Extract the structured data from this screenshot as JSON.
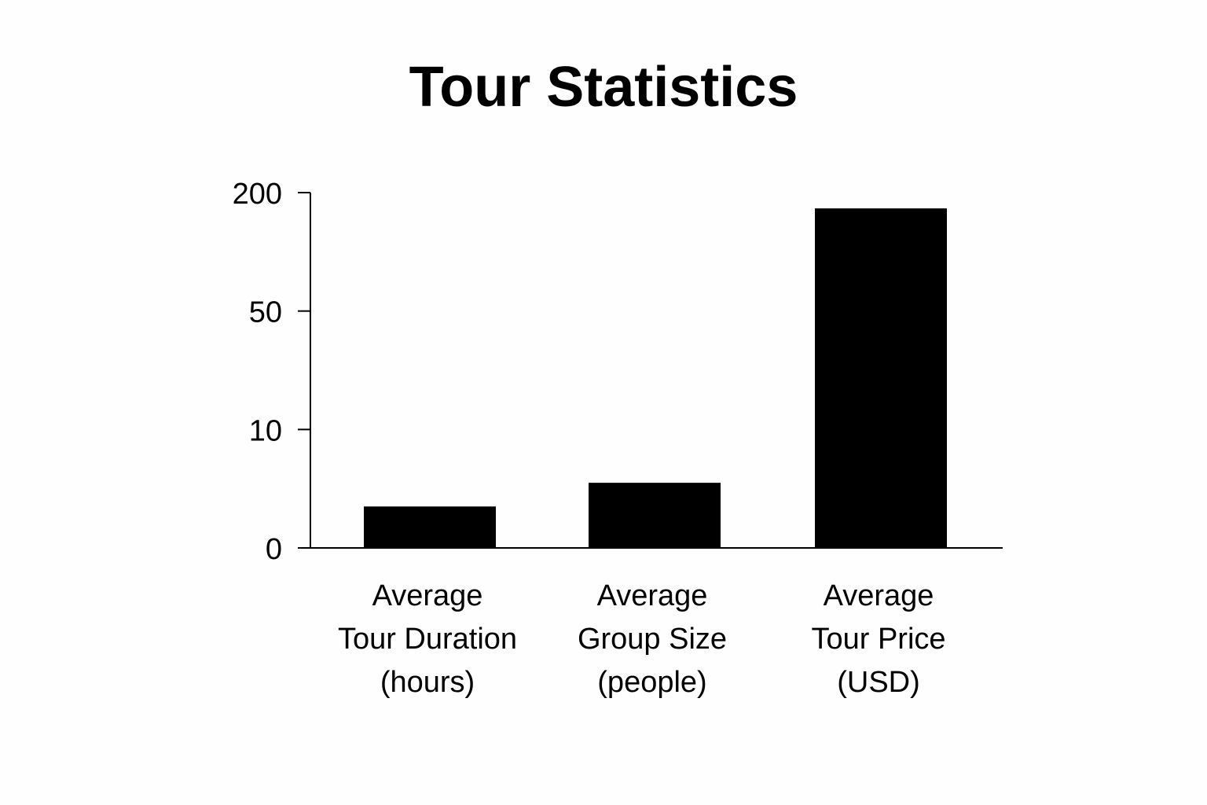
{
  "chart_data": {
    "type": "bar",
    "title": "Tour Statistics",
    "xlabel": "",
    "ylabel": "",
    "categories": [
      [
        "Average",
        "Tour Duration",
        "(hours)"
      ],
      [
        "Average",
        "Group Size",
        "(people)"
      ],
      [
        "Average",
        "Tour Price",
        "(USD)"
      ]
    ],
    "values": [
      3.5,
      5.5,
      180
    ],
    "y_ticks": [
      0,
      10,
      50,
      200
    ],
    "ylim": [
      0,
      200
    ],
    "y_scale": "piecewise: ticks 0, 10, 50, 200 evenly spaced",
    "grid": false,
    "legend": "none",
    "bar_color": "#000000"
  }
}
